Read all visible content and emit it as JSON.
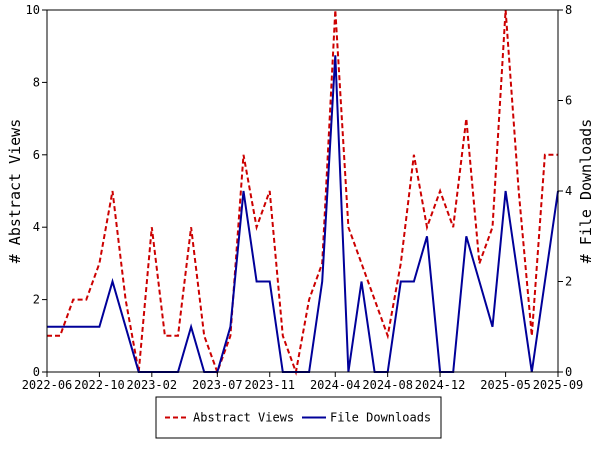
{
  "chart_data": {
    "type": "line",
    "title": "",
    "xlabel": "",
    "ylabel_left": "# Abstract Views",
    "ylabel_right": "# File Downloads",
    "x_tick_labels": [
      "2022-06",
      "2022-10",
      "2023-02",
      "2023-07",
      "2023-11",
      "2024-04",
      "2024-08",
      "2024-12",
      "2025-05",
      "2025-09"
    ],
    "y_left_ticks": [
      "0",
      "2",
      "4",
      "6",
      "8",
      "10"
    ],
    "y_right_ticks": [
      "0",
      "2",
      "4",
      "6",
      "8"
    ],
    "ylim_left": [
      0,
      10
    ],
    "ylim_right": [
      0,
      8
    ],
    "x_range": [
      "2022-06",
      "2025-09"
    ],
    "grid": false,
    "legend_position": "bottom-center",
    "series": [
      {
        "name": "Abstract Views",
        "axis": "left",
        "color": "#cc0000",
        "style": "dashed",
        "points": [
          [
            "2022-06",
            1
          ],
          [
            "2022-07",
            1
          ],
          [
            "2022-08",
            2
          ],
          [
            "2022-09",
            2
          ],
          [
            "2022-10",
            3
          ],
          [
            "2022-11",
            5
          ],
          [
            "2022-12",
            2
          ],
          [
            "2023-01",
            0
          ],
          [
            "2023-02",
            4
          ],
          [
            "2023-03",
            1
          ],
          [
            "2023-04",
            1
          ],
          [
            "2023-05",
            4
          ],
          [
            "2023-06",
            1
          ],
          [
            "2023-07",
            0
          ],
          [
            "2023-08",
            1
          ],
          [
            "2023-09",
            6
          ],
          [
            "2023-10",
            4
          ],
          [
            "2023-11",
            5
          ],
          [
            "2023-12",
            1
          ],
          [
            "2024-01",
            0
          ],
          [
            "2024-02",
            2
          ],
          [
            "2024-03",
            3
          ],
          [
            "2024-04",
            10
          ],
          [
            "2024-05",
            4
          ],
          [
            "2024-06",
            3
          ],
          [
            "2024-07",
            2
          ],
          [
            "2024-08",
            1
          ],
          [
            "2024-09",
            3
          ],
          [
            "2024-10",
            6
          ],
          [
            "2024-11",
            4
          ],
          [
            "2024-12",
            5
          ],
          [
            "2025-01",
            4
          ],
          [
            "2025-02",
            7
          ],
          [
            "2025-03",
            3
          ],
          [
            "2025-04",
            4
          ],
          [
            "2025-05",
            10
          ],
          [
            "2025-06",
            5
          ],
          [
            "2025-07",
            1
          ],
          [
            "2025-08",
            6
          ],
          [
            "2025-09",
            6
          ]
        ]
      },
      {
        "name": "File Downloads",
        "axis": "right",
        "color": "#000099",
        "style": "solid",
        "points": [
          [
            "2022-06",
            1
          ],
          [
            "2022-07",
            1
          ],
          [
            "2022-08",
            1
          ],
          [
            "2022-09",
            1
          ],
          [
            "2022-10",
            1
          ],
          [
            "2022-11",
            2
          ],
          [
            "2022-12",
            1
          ],
          [
            "2023-01",
            0
          ],
          [
            "2023-02",
            0
          ],
          [
            "2023-03",
            0
          ],
          [
            "2023-04",
            0
          ],
          [
            "2023-05",
            1
          ],
          [
            "2023-06",
            0
          ],
          [
            "2023-07",
            0
          ],
          [
            "2023-08",
            1
          ],
          [
            "2023-09",
            4
          ],
          [
            "2023-10",
            2
          ],
          [
            "2023-11",
            2
          ],
          [
            "2023-12",
            0
          ],
          [
            "2024-01",
            0
          ],
          [
            "2024-02",
            0
          ],
          [
            "2024-03",
            2
          ],
          [
            "2024-04",
            7
          ],
          [
            "2024-05",
            0
          ],
          [
            "2024-06",
            2
          ],
          [
            "2024-07",
            0
          ],
          [
            "2024-08",
            0
          ],
          [
            "2024-09",
            2
          ],
          [
            "2024-10",
            2
          ],
          [
            "2024-11",
            3
          ],
          [
            "2024-12",
            0
          ],
          [
            "2025-01",
            0
          ],
          [
            "2025-02",
            3
          ],
          [
            "2025-03",
            2
          ],
          [
            "2025-04",
            1
          ],
          [
            "2025-05",
            4
          ],
          [
            "2025-06",
            2
          ],
          [
            "2025-07",
            0
          ],
          [
            "2025-08",
            2
          ],
          [
            "2025-09",
            4
          ]
        ]
      }
    ]
  }
}
